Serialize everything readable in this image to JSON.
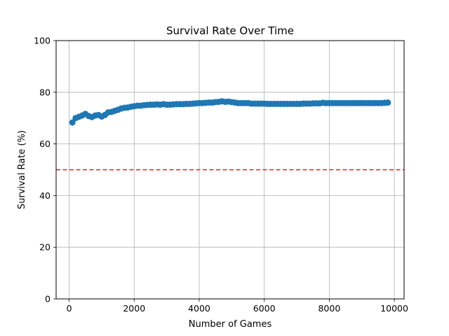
{
  "chart_data": {
    "type": "scatter",
    "title": "Survival Rate Over Time",
    "xlabel": "Number of Games",
    "ylabel": "Survival Rate (%)",
    "xlim": [
      -400,
      10300
    ],
    "ylim": [
      0,
      100
    ],
    "xticks": [
      0,
      2000,
      4000,
      6000,
      8000,
      10000
    ],
    "yticks": [
      0,
      20,
      40,
      60,
      80,
      100
    ],
    "grid": true,
    "series": [
      {
        "color": "#1f77b4",
        "style": "line-with-markers",
        "x": [
          100,
          200,
          300,
          400,
          500,
          600,
          700,
          800,
          900,
          1000,
          1100,
          1200,
          1300,
          1400,
          1500,
          1600,
          1700,
          1800,
          1900,
          2000,
          2100,
          2200,
          2300,
          2400,
          2500,
          2600,
          2700,
          2800,
          2900,
          3000,
          3100,
          3200,
          3300,
          3400,
          3500,
          3600,
          3700,
          3800,
          3900,
          4000,
          4100,
          4200,
          4300,
          4400,
          4500,
          4600,
          4700,
          4800,
          4900,
          5000,
          5100,
          5200,
          5300,
          5400,
          5500,
          5600,
          5700,
          5800,
          5900,
          6000,
          6100,
          6200,
          6300,
          6400,
          6500,
          6600,
          6700,
          6800,
          6900,
          7000,
          7100,
          7200,
          7300,
          7400,
          7500,
          7600,
          7700,
          7800,
          7900,
          8000,
          8100,
          8200,
          8300,
          8400,
          8500,
          8600,
          8700,
          8800,
          8900,
          9000,
          9100,
          9200,
          9300,
          9400,
          9500,
          9600,
          9700,
          9800
        ],
        "y": [
          68.3,
          70.0,
          70.5,
          71.0,
          71.6,
          70.8,
          70.4,
          71.0,
          71.2,
          70.6,
          71.2,
          72.2,
          72.4,
          72.8,
          73.2,
          73.7,
          74.0,
          74.1,
          74.4,
          74.6,
          74.8,
          74.8,
          75.0,
          75.1,
          75.2,
          75.2,
          75.3,
          75.2,
          75.4,
          75.2,
          75.2,
          75.3,
          75.4,
          75.4,
          75.4,
          75.5,
          75.5,
          75.6,
          75.7,
          75.8,
          75.8,
          75.9,
          76.0,
          76.0,
          76.2,
          76.3,
          76.5,
          76.3,
          76.4,
          76.2,
          76.0,
          75.8,
          75.8,
          75.8,
          75.8,
          75.6,
          75.6,
          75.6,
          75.6,
          75.6,
          75.5,
          75.5,
          75.5,
          75.5,
          75.5,
          75.5,
          75.5,
          75.5,
          75.5,
          75.5,
          75.5,
          75.6,
          75.6,
          75.6,
          75.7,
          75.7,
          75.7,
          75.9,
          75.8,
          75.8,
          75.8,
          75.8,
          75.8,
          75.8,
          75.8,
          75.8,
          75.8,
          75.8,
          75.8,
          75.8,
          75.8,
          75.8,
          75.8,
          75.8,
          75.8,
          75.8,
          75.9,
          76.0
        ]
      }
    ],
    "reference_lines": [
      {
        "y": 50,
        "color": "#d62728",
        "style": "dashed"
      }
    ]
  }
}
